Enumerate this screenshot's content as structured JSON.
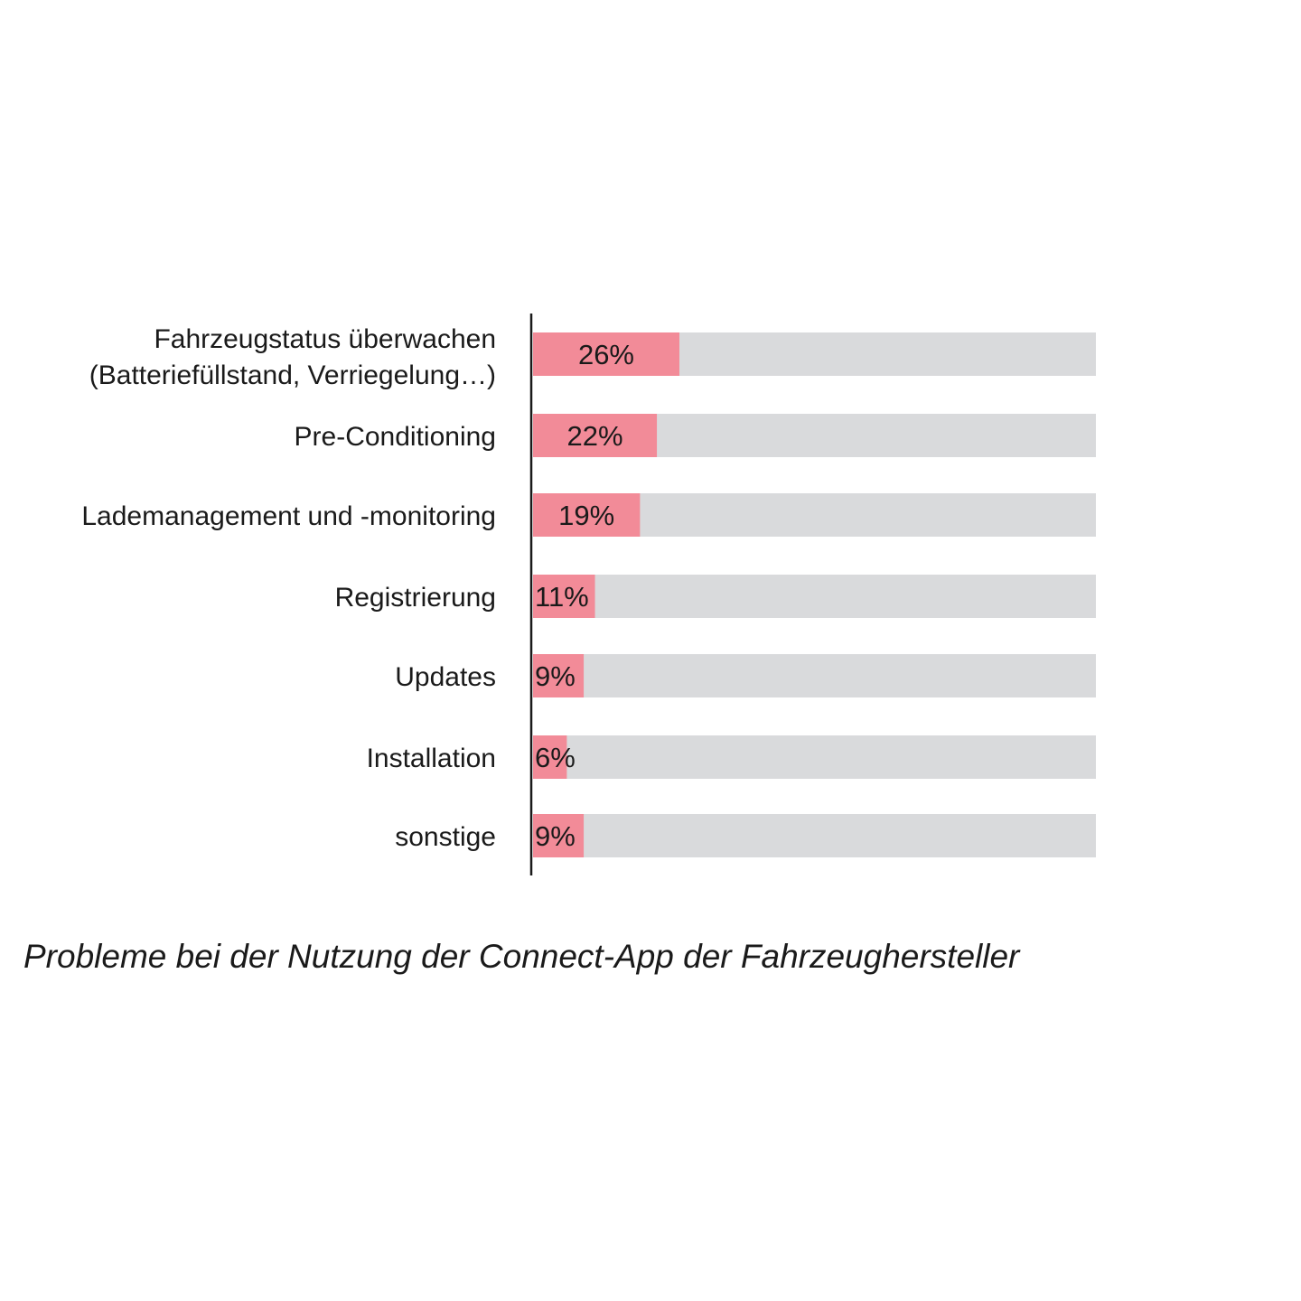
{
  "chart_data": {
    "type": "bar",
    "orientation": "horizontal",
    "categories": [
      [
        "Fahrzeugstatus überwachen",
        "(Batteriefüllstand, Verriegelung…)"
      ],
      [
        "Pre-Conditioning"
      ],
      [
        "Lademanagement und -monitoring"
      ],
      [
        "Registrierung"
      ],
      [
        "Updates"
      ],
      [
        "Installation"
      ],
      [
        "sonstige"
      ]
    ],
    "values": [
      26,
      22,
      19,
      11,
      9,
      6,
      9
    ],
    "value_labels": [
      "26%",
      "22%",
      "19%",
      "11%",
      "9%",
      "6%",
      "9%"
    ],
    "xlim": [
      0,
      100
    ],
    "unit": "%",
    "title": "Probleme bei der Nutzung der Connect-App der Fahrzeughersteller",
    "grid": false,
    "legend": "none",
    "colors": {
      "bar": "#f28b98",
      "track": "#d9dadc",
      "axis": "#1a1a1a",
      "text": "#1a1a1a"
    }
  }
}
